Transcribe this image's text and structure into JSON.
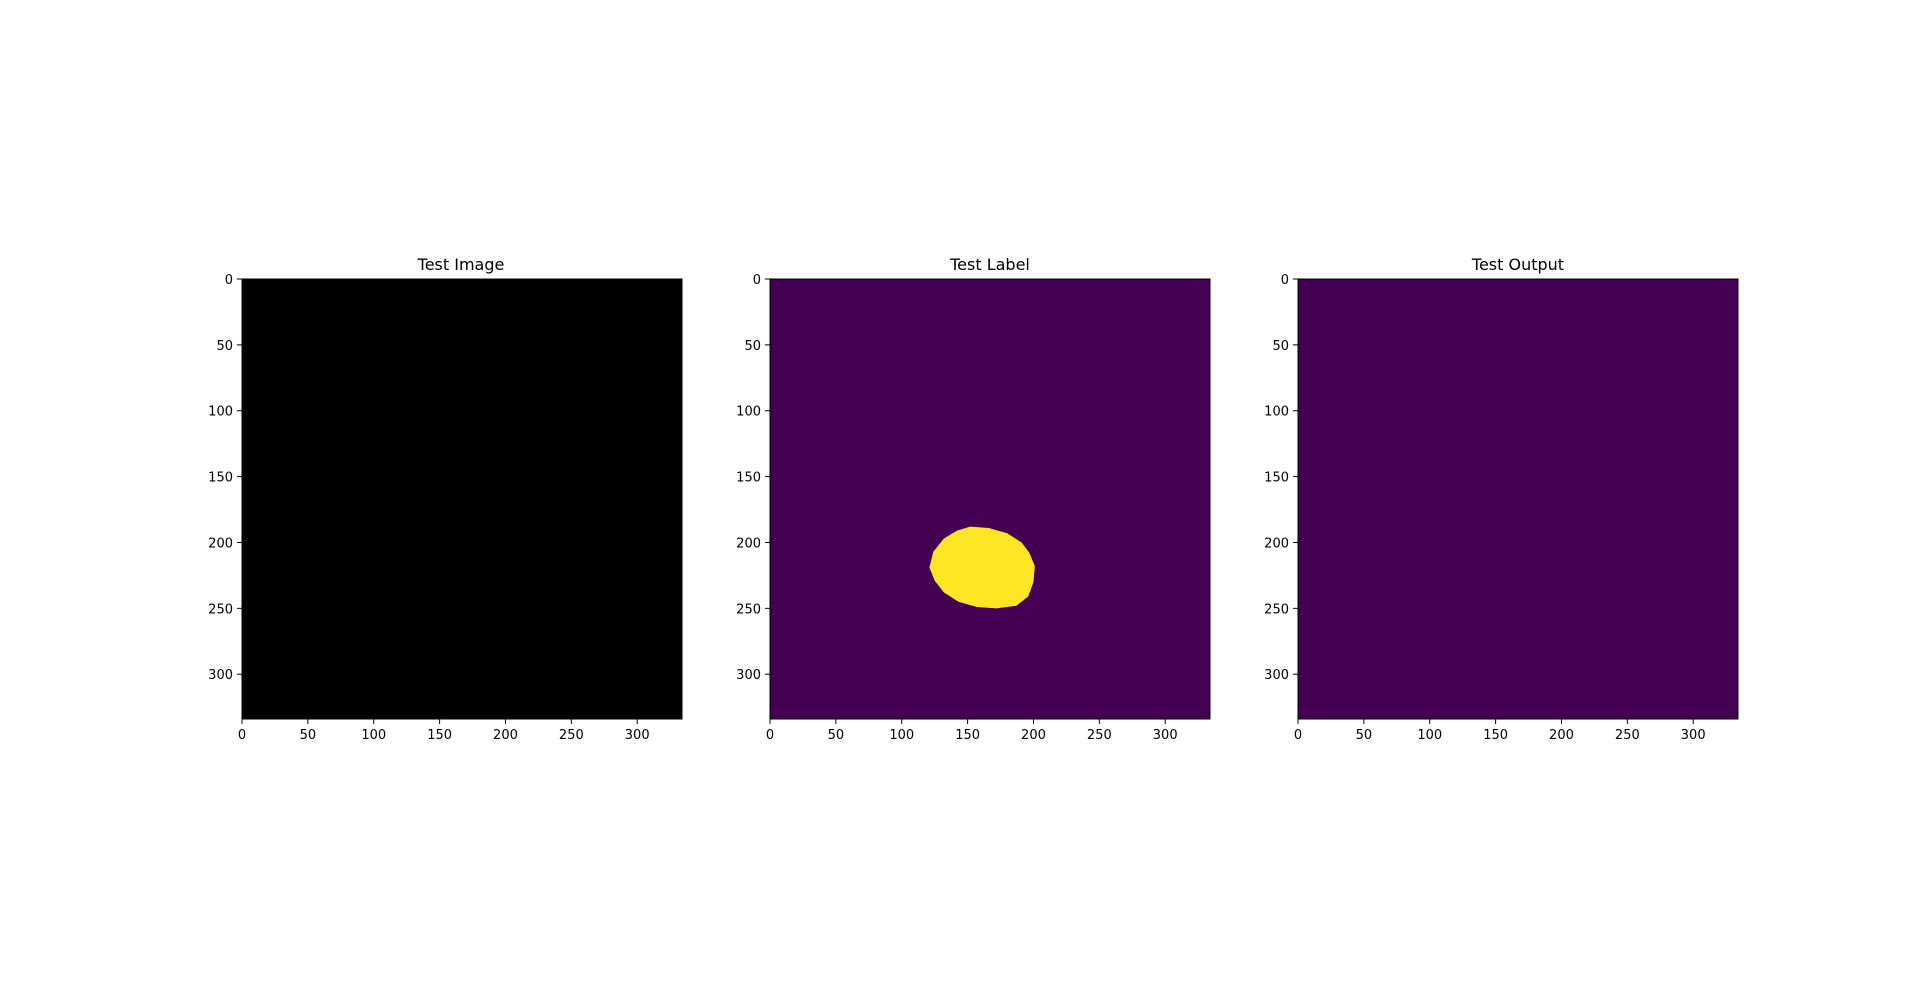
{
  "chart_data": [
    {
      "type": "heatmap",
      "title": "Test Image",
      "colormap": "gray",
      "image_size": [
        334,
        334
      ],
      "xlim": [
        0,
        334
      ],
      "ylim": [
        334,
        0
      ],
      "x_ticks": [
        0,
        50,
        100,
        150,
        200,
        250,
        300
      ],
      "y_ticks": [
        0,
        50,
        100,
        150,
        200,
        250,
        300
      ],
      "x_tick_labels": [
        "0",
        "50",
        "100",
        "150",
        "200",
        "250",
        "300"
      ],
      "y_tick_labels": [
        "0",
        "50",
        "100",
        "150",
        "200",
        "250",
        "300"
      ],
      "background_value": 0,
      "background_color": "#000000",
      "regions": []
    },
    {
      "type": "heatmap",
      "title": "Test Label",
      "colormap": "viridis",
      "image_size": [
        334,
        334
      ],
      "xlim": [
        0,
        334
      ],
      "ylim": [
        334,
        0
      ],
      "x_ticks": [
        0,
        50,
        100,
        150,
        200,
        250,
        300
      ],
      "y_ticks": [
        0,
        50,
        100,
        150,
        200,
        250,
        300
      ],
      "x_tick_labels": [
        "0",
        "50",
        "100",
        "150",
        "200",
        "250",
        "300"
      ],
      "y_tick_labels": [
        "0",
        "50",
        "100",
        "150",
        "200",
        "250",
        "300"
      ],
      "background_value": 0,
      "background_color": "#440154",
      "regions": [
        {
          "shape": "blob",
          "value": 1,
          "color": "#fde725",
          "outline": [
            [
              152,
              188
            ],
            [
              166,
              189
            ],
            [
              180,
              193
            ],
            [
              191,
              200
            ],
            [
              197,
              208
            ],
            [
              201,
              218
            ],
            [
              200,
              230
            ],
            [
              196,
              241
            ],
            [
              187,
              248
            ],
            [
              172,
              250
            ],
            [
              157,
              249
            ],
            [
              143,
              245
            ],
            [
              132,
              238
            ],
            [
              125,
              229
            ],
            [
              121,
              219
            ],
            [
              124,
              207
            ],
            [
              132,
              197
            ],
            [
              142,
              191
            ]
          ]
        }
      ]
    },
    {
      "type": "heatmap",
      "title": "Test Output",
      "colormap": "viridis",
      "image_size": [
        334,
        334
      ],
      "xlim": [
        0,
        334
      ],
      "ylim": [
        334,
        0
      ],
      "x_ticks": [
        0,
        50,
        100,
        150,
        200,
        250,
        300
      ],
      "y_ticks": [
        0,
        50,
        100,
        150,
        200,
        250,
        300
      ],
      "x_tick_labels": [
        "0",
        "50",
        "100",
        "150",
        "200",
        "250",
        "300"
      ],
      "y_tick_labels": [
        "0",
        "50",
        "100",
        "150",
        "200",
        "250",
        "300"
      ],
      "background_value": 0,
      "background_color": "#440154",
      "regions": []
    }
  ]
}
